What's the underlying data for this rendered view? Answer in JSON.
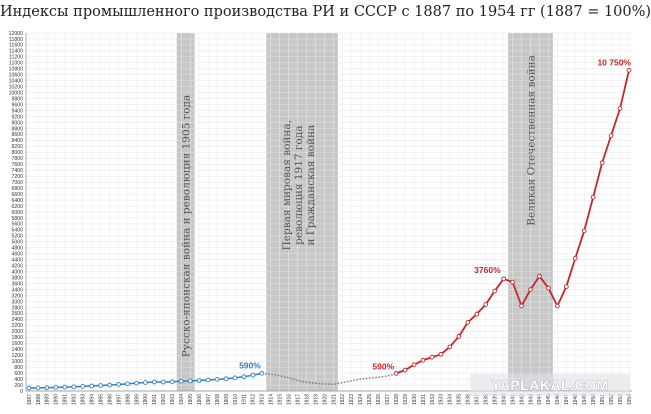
{
  "chart_data": {
    "type": "line",
    "title": "Индексы промышленного производства РИ и СССР с 1887 по 1954 гг (1887 = 100%)",
    "xlabel": "",
    "ylabel": "",
    "ylim": [
      0,
      12000
    ],
    "ytick_step": 200,
    "x": [
      1887,
      1888,
      1889,
      1890,
      1891,
      1892,
      1893,
      1894,
      1895,
      1896,
      1897,
      1898,
      1899,
      1900,
      1901,
      1902,
      1903,
      1904,
      1905,
      1906,
      1907,
      1908,
      1909,
      1910,
      1911,
      1912,
      1913,
      1914,
      1915,
      1916,
      1917,
      1918,
      1919,
      1920,
      1921,
      1922,
      1923,
      1924,
      1925,
      1926,
      1927,
      1928,
      1929,
      1930,
      1931,
      1932,
      1933,
      1934,
      1935,
      1936,
      1937,
      1938,
      1939,
      1940,
      1941,
      1942,
      1943,
      1944,
      1945,
      1946,
      1947,
      1948,
      1949,
      1950,
      1951,
      1952,
      1953,
      1954
    ],
    "grid": true,
    "colors": {
      "empire": "#2e80c4",
      "gap": "#808080",
      "ussr": "#c1272d",
      "band": "#bdbdbd"
    },
    "series": [
      {
        "segment": "empire",
        "x": [
          1887,
          1888,
          1889,
          1890,
          1891,
          1892,
          1893,
          1894,
          1895,
          1896,
          1897,
          1898,
          1899,
          1900,
          1901,
          1902,
          1903,
          1904,
          1905,
          1906,
          1907,
          1908,
          1909,
          1910,
          1911,
          1912,
          1913
        ],
        "values": [
          100,
          105,
          110,
          120,
          130,
          140,
          155,
          170,
          185,
          200,
          220,
          240,
          265,
          285,
          300,
          300,
          310,
          330,
          340,
          350,
          370,
          390,
          410,
          440,
          480,
          530,
          590
        ]
      },
      {
        "segment": "gap",
        "x": [
          1913,
          1914,
          1915,
          1916,
          1917,
          1918,
          1919,
          1920,
          1921,
          1922,
          1923,
          1924,
          1925,
          1926,
          1927,
          1928
        ],
        "values": [
          590,
          570,
          510,
          440,
          360,
          290,
          260,
          230,
          220,
          280,
          340,
          400,
          430,
          460,
          500,
          590
        ]
      },
      {
        "segment": "ussr",
        "x": [
          1928,
          1929,
          1930,
          1931,
          1932,
          1933,
          1934,
          1935,
          1936,
          1937,
          1938,
          1939,
          1940,
          1941,
          1942,
          1943,
          1944,
          1945,
          1946,
          1947,
          1948,
          1949,
          1950,
          1951,
          1952,
          1953,
          1954
        ],
        "values": [
          590,
          700,
          880,
          1030,
          1130,
          1230,
          1480,
          1830,
          2300,
          2580,
          2900,
          3350,
          3760,
          3650,
          2850,
          3400,
          3850,
          3450,
          2850,
          3500,
          4450,
          5370,
          6500,
          7650,
          8560,
          9470,
          10750
        ]
      }
    ],
    "bands": [
      {
        "x": [
          1904,
          1905
        ],
        "label": "Русско-японская война и революция 1905 года"
      },
      {
        "x": [
          1914,
          1921
        ],
        "label_lines": [
          "Первая  мировая война,",
          "революция 1917 года",
          "и Гражданская война"
        ]
      },
      {
        "x": [
          1941,
          1945
        ],
        "label": "Великая Отечественная война"
      }
    ],
    "annotations": [
      {
        "x": 1913,
        "y": 590,
        "text": "590%",
        "color": "#2e80c4"
      },
      {
        "x": 1928,
        "y": 590,
        "text": "590%",
        "color": "#c1272d"
      },
      {
        "x": 1940,
        "y": 3760,
        "text": "3760%",
        "color": "#c1272d"
      },
      {
        "x": 1954,
        "y": 10750,
        "text": "10 750%",
        "color": "#c1272d"
      }
    ],
    "watermark": "YAPLAKAL.COM"
  }
}
